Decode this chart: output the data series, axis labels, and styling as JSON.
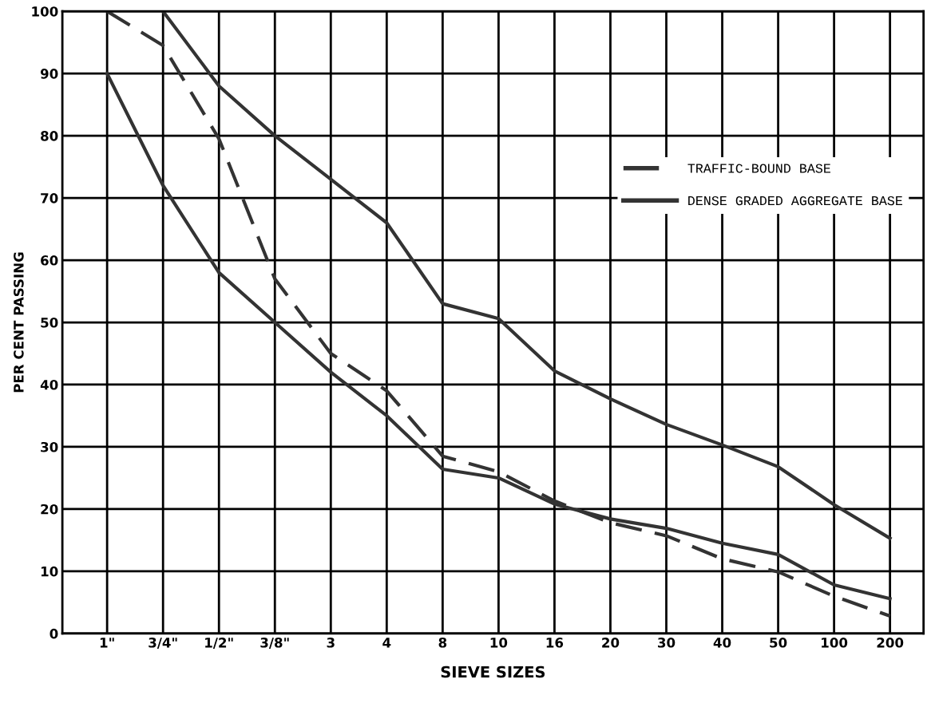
{
  "chart_data": {
    "type": "line",
    "xlabel": "SIEVE SIZES",
    "ylabel": "PER CENT PASSING",
    "categories": [
      "1\"",
      "3/4\"",
      "1/2\"",
      "3/8\"",
      "3",
      "4",
      "8",
      "10",
      "16",
      "20",
      "30",
      "40",
      "50",
      "100",
      "200"
    ],
    "ylim": [
      0,
      100
    ],
    "yticks": [
      0,
      10,
      20,
      30,
      40,
      50,
      60,
      70,
      80,
      90,
      100
    ],
    "grid": true,
    "legend": "right",
    "series": [
      {
        "name": "TRAFFIC-BOUND BASE",
        "color": "#333333",
        "line_style": "dashed",
        "values": [
          100,
          94.5,
          79.5,
          57,
          45,
          39,
          28.5,
          26,
          21.3,
          17.8,
          15.7,
          12,
          9.9,
          6,
          2.8
        ]
      },
      {
        "name": "DENSE GRADED AGGREGATE BASE",
        "color": "#333333",
        "line_style": "solid",
        "values": [
          null,
          100,
          88,
          80,
          73,
          66,
          53,
          50.6,
          42.2,
          37.7,
          33.6,
          30.3,
          26.8,
          20.7,
          15.3
        ]
      },
      {
        "color": "#333333",
        "line_style": "solid",
        "values": [
          90,
          72,
          58,
          50,
          42,
          35,
          26.4,
          25,
          20.8,
          18.4,
          16.9,
          14.5,
          12.7,
          7.8,
          5.6
        ]
      }
    ]
  }
}
